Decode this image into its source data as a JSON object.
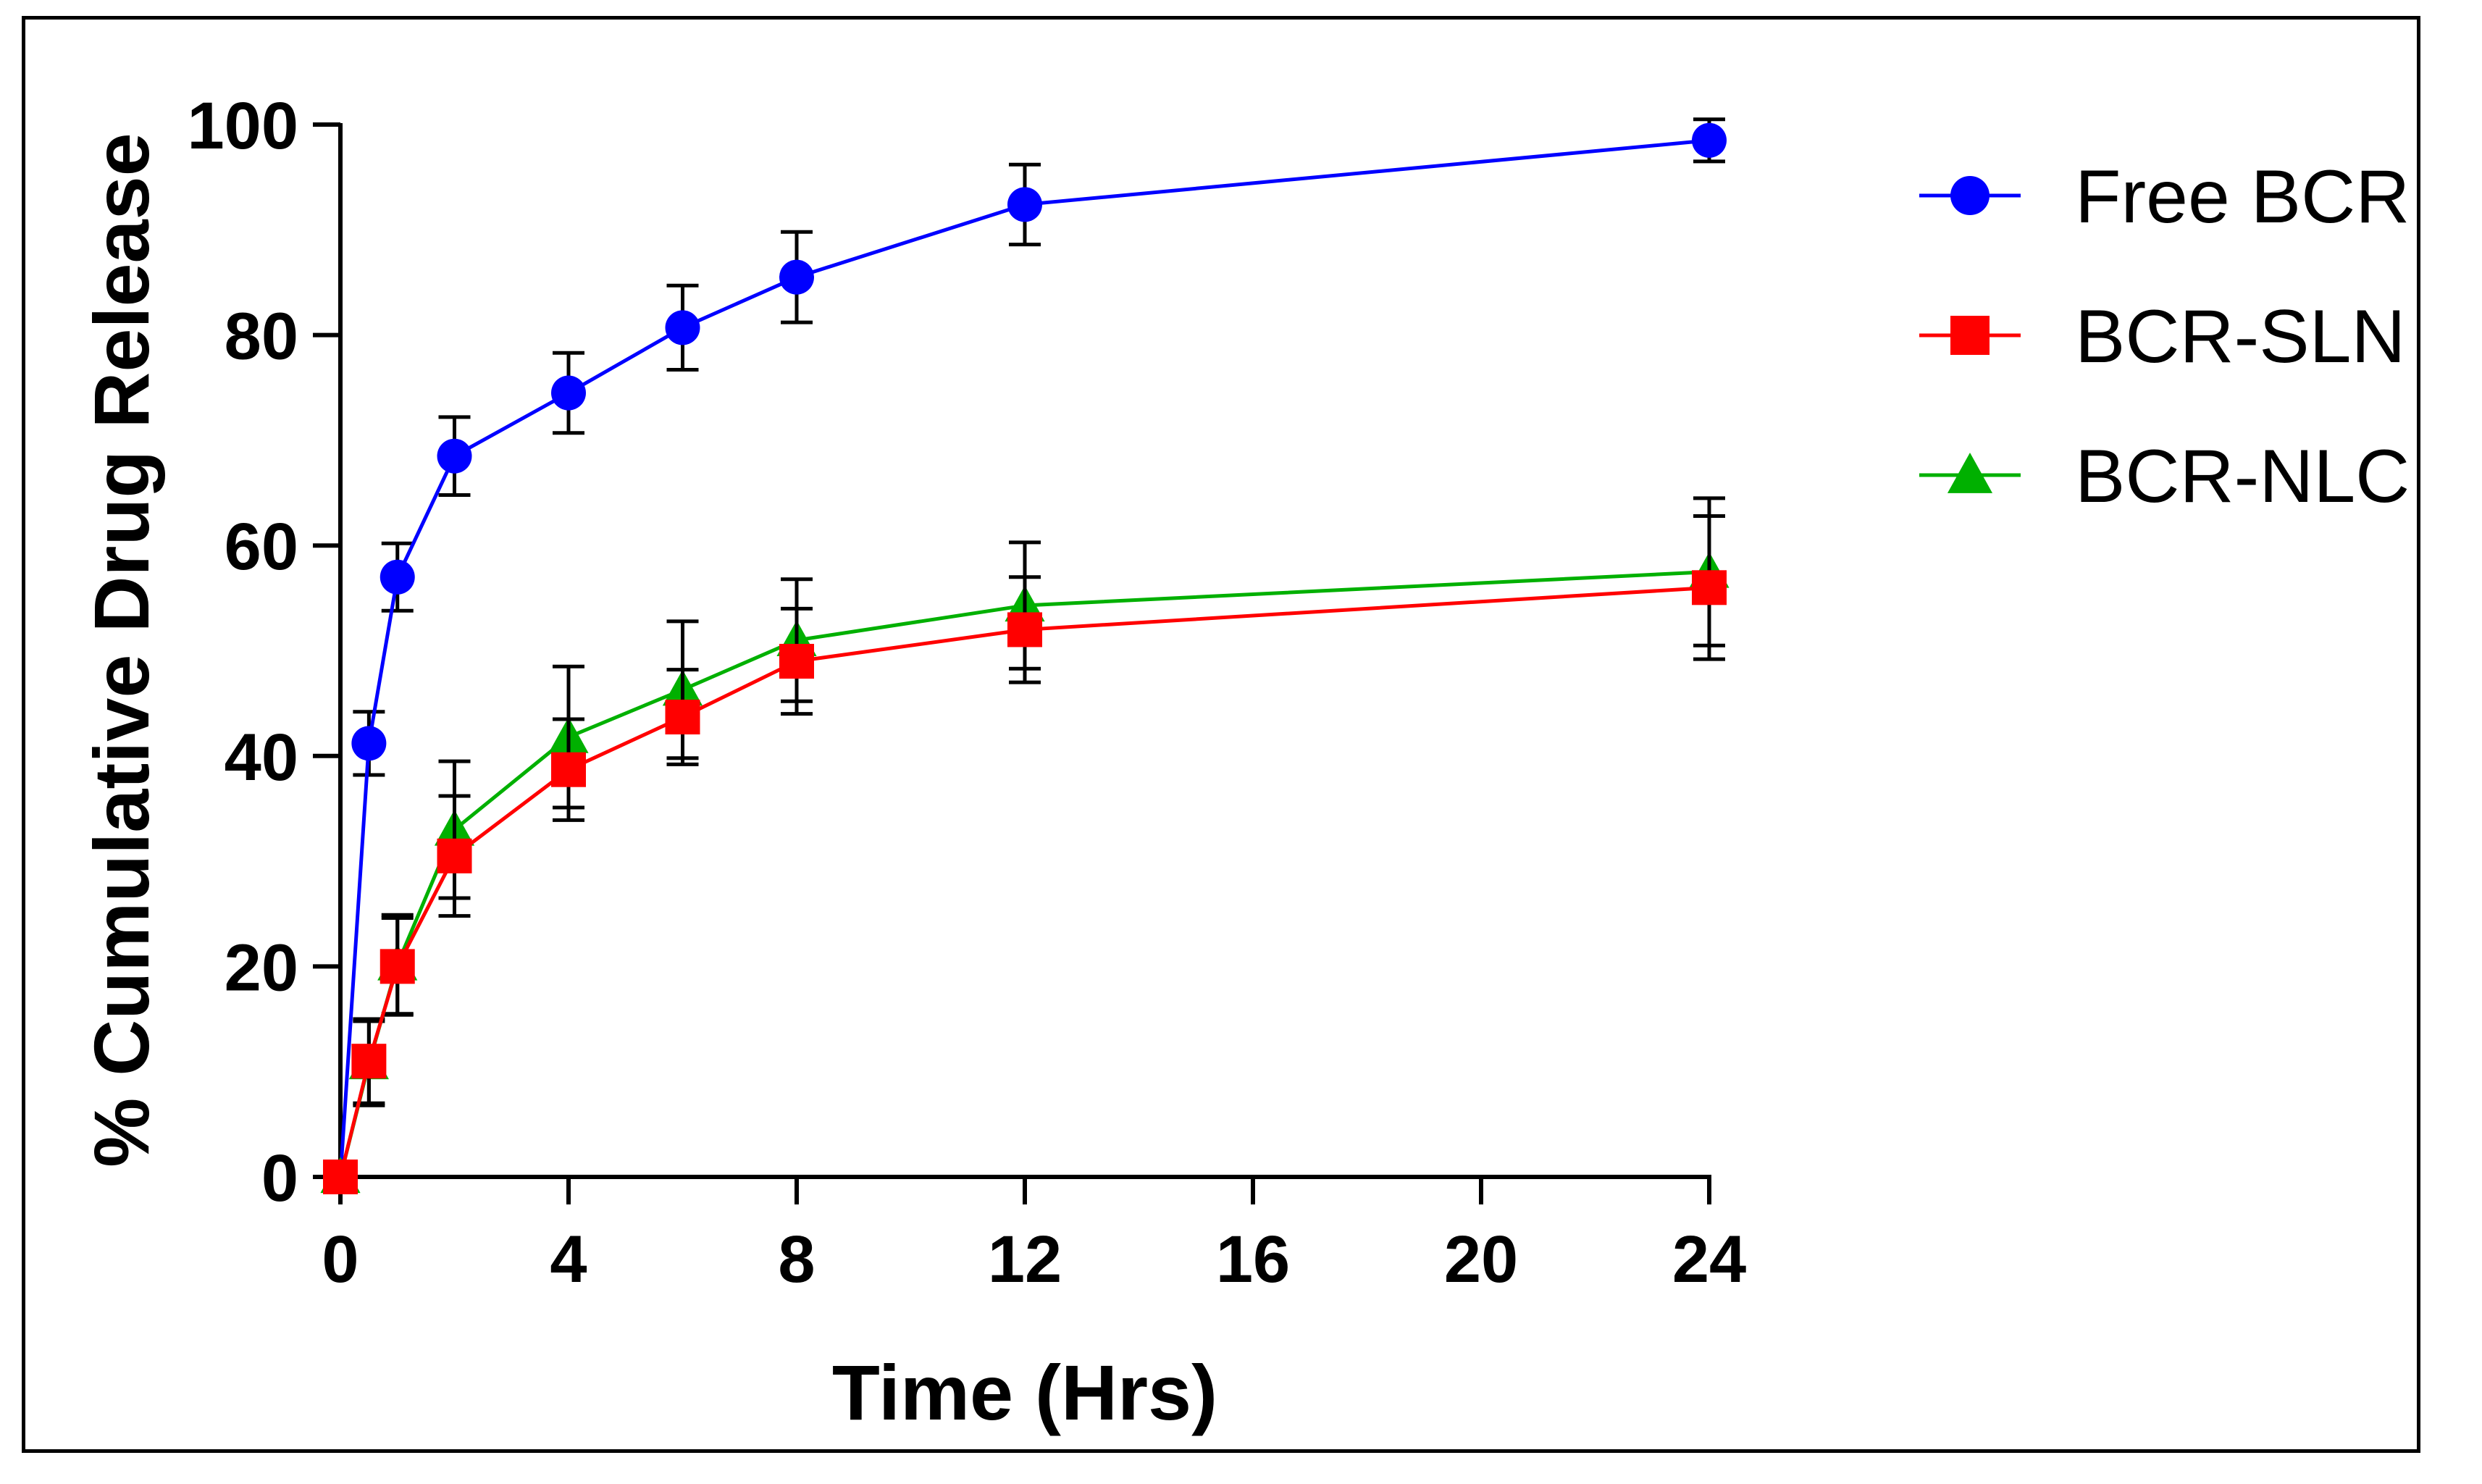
{
  "chart_data": {
    "type": "line",
    "title": "",
    "xlabel": "Time (Hrs)",
    "ylabel": "% Cumulative Drug Release",
    "xlim": [
      0,
      24
    ],
    "ylim": [
      0,
      100
    ],
    "xticks": [
      0,
      4,
      8,
      12,
      16,
      20,
      24
    ],
    "yticks": [
      0,
      20,
      40,
      60,
      80,
      100
    ],
    "xtick_labels": [
      "0",
      "4",
      "8",
      "12",
      "16",
      "20",
      "24"
    ],
    "ytick_labels": [
      "0",
      "20",
      "40",
      "60",
      "80",
      "100"
    ],
    "grid": false,
    "legend_position": "top-right",
    "series": [
      {
        "name": "Free BCR",
        "color": "#0000ff",
        "marker": "circle",
        "x": [
          0,
          0.5,
          1,
          2,
          4,
          6,
          8,
          12,
          24
        ],
        "values": [
          0,
          41.2,
          57.0,
          68.5,
          74.5,
          80.7,
          85.5,
          92.4,
          98.5
        ],
        "errors": [
          0,
          3.0,
          3.2,
          3.7,
          3.8,
          4.0,
          4.3,
          3.8,
          2.0
        ]
      },
      {
        "name": "BCR-SLN",
        "color": "#ff0000",
        "marker": "square",
        "x": [
          0,
          0.5,
          1,
          2,
          4,
          6,
          8,
          12,
          24
        ],
        "values": [
          0,
          11.0,
          20.0,
          30.5,
          38.7,
          43.7,
          49.0,
          52.0,
          56.0
        ],
        "errors": [
          0,
          4.0,
          4.6,
          5.7,
          4.8,
          4.5,
          5.0,
          5.0,
          6.8
        ]
      },
      {
        "name": "BCR-NLC",
        "color": "#00b000",
        "marker": "triangle",
        "x": [
          0,
          0.5,
          1,
          2,
          4,
          6,
          8,
          12,
          24
        ],
        "values": [
          0,
          10.8,
          20.2,
          33.0,
          41.8,
          46.3,
          51.0,
          54.3,
          57.5
        ],
        "errors": [
          0,
          4.0,
          4.7,
          6.5,
          6.7,
          6.5,
          5.8,
          6.0,
          7.0
        ]
      }
    ]
  }
}
